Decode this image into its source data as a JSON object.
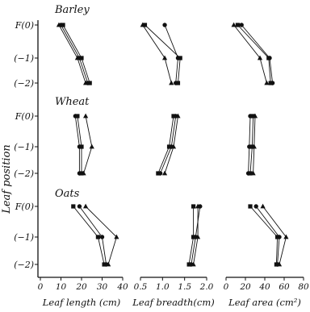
{
  "chart_data": {
    "type": "line",
    "y_axis_label": "Leaf position",
    "leaf_positions": [
      "F(0)",
      "(−1)",
      "(−2)"
    ],
    "rows": [
      "Barley",
      "Wheat",
      "Oats"
    ],
    "columns": [
      {
        "id": "length",
        "xlabel": "Leaf length (cm)",
        "xlim": [
          0,
          40
        ],
        "ticks": [
          0,
          10,
          20,
          30,
          40
        ],
        "tick_labels": [
          "0",
          "10",
          "20",
          "30",
          "40"
        ]
      },
      {
        "id": "breadth",
        "xlabel": "Leaf breadth(cm)",
        "xlim": [
          0.5,
          2.0
        ],
        "ticks": [
          0.5,
          1.0,
          1.5,
          2.0
        ],
        "tick_labels": [
          "0.5",
          "1.0",
          "1.5",
          "2.0"
        ]
      },
      {
        "id": "area",
        "xlabel": "Leaf area (cm²)",
        "xlim": [
          0,
          80
        ],
        "ticks": [
          0,
          20,
          40,
          60,
          80
        ],
        "tick_labels": [
          "0",
          "20",
          "40",
          "60",
          "80"
        ]
      }
    ],
    "markers": [
      "circle",
      "square",
      "triangle"
    ],
    "panels": {
      "Barley": {
        "length": [
          [
            10,
            19,
            23
          ],
          [
            11,
            20,
            24
          ],
          [
            9,
            18,
            22
          ]
        ],
        "breadth": [
          [
            1.05,
            1.35,
            1.3
          ],
          [
            0.6,
            1.4,
            1.35
          ],
          [
            0.55,
            1.05,
            1.2
          ]
        ],
        "area": [
          [
            16,
            45,
            48
          ],
          [
            12,
            44,
            46
          ],
          [
            8,
            35,
            42
          ]
        ]
      },
      "Wheat": {
        "length": [
          [
            17,
            19,
            19
          ],
          [
            18,
            20,
            20
          ],
          [
            22,
            25,
            21
          ]
        ],
        "breadth": [
          [
            1.3,
            1.2,
            0.95
          ],
          [
            1.25,
            1.15,
            0.9
          ],
          [
            1.35,
            1.25,
            1.05
          ]
        ],
        "area": [
          [
            25,
            24,
            23
          ],
          [
            28,
            27,
            25
          ],
          [
            30,
            29,
            28
          ]
        ]
      },
      "Oats": {
        "length": [
          [
            19,
            30,
            32
          ],
          [
            16,
            28,
            31
          ],
          [
            22,
            37,
            33
          ]
        ],
        "breadth": [
          [
            1.85,
            1.75,
            1.65
          ],
          [
            1.7,
            1.7,
            1.6
          ],
          [
            1.8,
            1.8,
            1.7
          ]
        ],
        "area": [
          [
            31,
            55,
            53
          ],
          [
            25,
            53,
            52
          ],
          [
            38,
            62,
            55
          ]
        ]
      }
    }
  }
}
